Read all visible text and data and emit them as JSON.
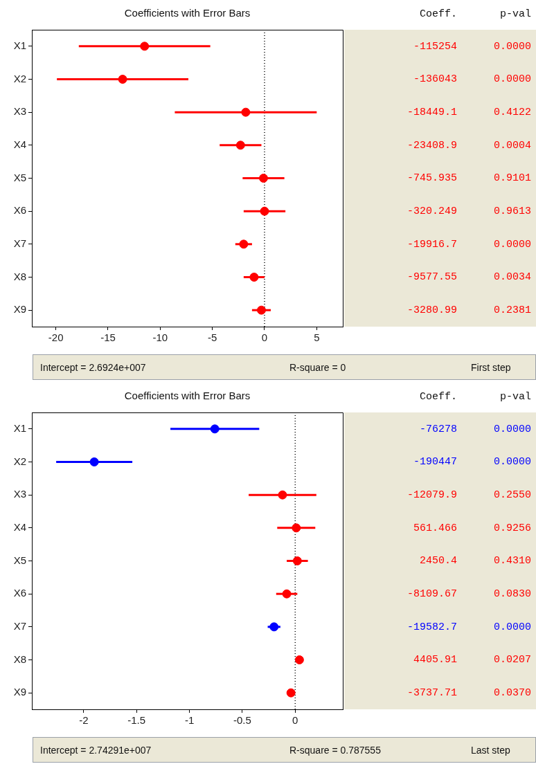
{
  "chart_data": [
    {
      "type": "scatter",
      "title": "Coefficients with Error Bars",
      "orientation": "horizontal",
      "categories": [
        "X1",
        "X2",
        "X3",
        "X4",
        "X5",
        "X6",
        "X7",
        "X8",
        "X9"
      ],
      "series": [
        {
          "color": "#ff0000",
          "values": [
            -11.5,
            -13.6,
            -1.8,
            -2.3,
            -0.1,
            0.0,
            -2.0,
            -1.0,
            -0.3
          ],
          "errors": [
            6.3,
            6.3,
            6.8,
            2.0,
            2.0,
            2.0,
            0.8,
            1.0,
            0.9
          ]
        }
      ],
      "xlim": [
        -22.3,
        7.5
      ],
      "xticks": [
        -20,
        -15,
        -10,
        -5,
        0,
        5
      ],
      "grid": false,
      "legend": false,
      "marker": "circle",
      "ref_lines": [
        {
          "axis": "x",
          "value": 0,
          "line_style": "dotted",
          "color": "#000000"
        }
      ],
      "annotations": [
        "Coeff.",
        "p-val",
        "-115254",
        "-136043",
        "-18449.1",
        "-23408.9",
        "-745.935",
        "-320.249",
        "-19916.7",
        "-9577.55",
        "-3280.99",
        "0.0000",
        "0.0000",
        "0.4122",
        "0.0004",
        "0.9101",
        "0.9613",
        "0.0000",
        "0.0034",
        "0.2381",
        "Intercept = 2.6924e+007",
        "R-square = 0",
        "First step"
      ]
    },
    {
      "type": "scatter",
      "title": "Coefficients with Error Bars",
      "orientation": "horizontal",
      "categories": [
        "X1",
        "X2",
        "X3",
        "X4",
        "X5",
        "X6",
        "X7",
        "X8",
        "X9"
      ],
      "series": [
        {
          "color": "#0000ff",
          "values": [
            -0.76,
            -1.9,
            null,
            null,
            null,
            null,
            -0.2,
            null,
            null
          ],
          "errors": [
            0.42,
            0.36,
            null,
            null,
            null,
            null,
            0.06,
            null,
            null
          ]
        },
        {
          "color": "#ff0000",
          "values": [
            null,
            null,
            -0.12,
            0.01,
            0.02,
            -0.08,
            null,
            0.04,
            -0.04
          ],
          "errors": [
            null,
            null,
            0.32,
            0.18,
            0.1,
            0.1,
            null,
            0.03,
            0.03
          ]
        }
      ],
      "xlim": [
        -2.49,
        0.45
      ],
      "xticks": [
        -2,
        -1.5,
        -1,
        -0.5,
        0
      ],
      "grid": false,
      "legend": false,
      "marker": "circle",
      "ref_lines": [
        {
          "axis": "x",
          "value": 0,
          "line_style": "dotted",
          "color": "#000000"
        }
      ],
      "annotations": [
        "Coeff.",
        "p-val",
        "-76278",
        "-190447",
        "-12079.9",
        "561.466",
        "2450.4",
        "-8109.67",
        "-19582.7",
        "4405.91",
        "-3737.71",
        "0.0000",
        "0.0000",
        "0.2550",
        "0.9256",
        "0.4310",
        "0.0830",
        "0.0000",
        "0.0207",
        "0.0370",
        "Intercept = 2.74291e+007",
        "R-square = 0.787555",
        "Last step"
      ]
    }
  ]
}
